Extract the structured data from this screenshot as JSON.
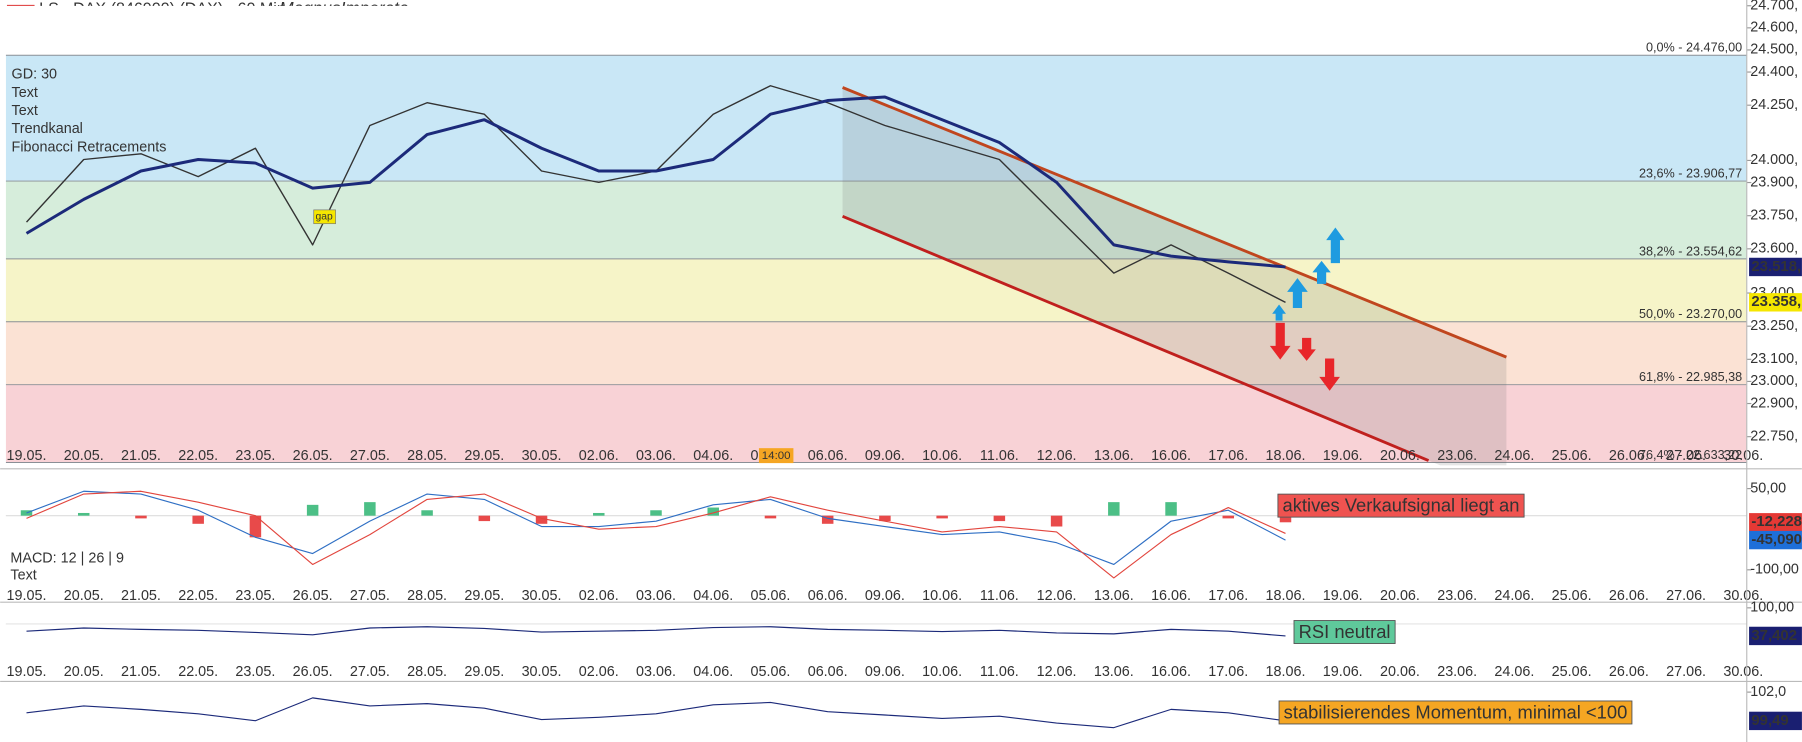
{
  "header": {
    "title": "LS - DAX (846900) (DAX) - 60 Min",
    "author": "MagnusImperata"
  },
  "chart_data": [
    {
      "type": "line",
      "categories": [
        "19.05.",
        "20.05.",
        "21.05.",
        "22.05.",
        "23.05.",
        "26.05.",
        "27.05.",
        "28.05.",
        "29.05.",
        "30.05.",
        "02.06.",
        "03.06.",
        "04.06.",
        "05.06.",
        "06.06.",
        "09.06.",
        "10.06.",
        "11.06.",
        "12.06.",
        "13.06.",
        "16.06.",
        "17.06.",
        "18.06.",
        "19.06.",
        "20.06.",
        "23.06.",
        "24.06.",
        "25.06.",
        "26.06.",
        "27.06.",
        "30.06."
      ],
      "series": [
        {
          "color": "#333333",
          "values": [
            23721,
            24004,
            24030,
            23927,
            24055,
            23618,
            24158,
            24261,
            24209,
            23952,
            23901,
            23952,
            24209,
            24338,
            24261,
            24158,
            24081,
            24004,
            23747,
            23490,
            23618,
            23490,
            23358,
            null,
            null,
            null,
            null,
            null,
            null,
            null,
            null
          ]
        },
        {
          "name": "GD: 30",
          "color": "#1c2a7a",
          "values": [
            23670,
            23824,
            23952,
            24004,
            23988,
            23875,
            23901,
            24117,
            24184,
            24055,
            23952,
            23952,
            24004,
            24209,
            24271,
            24287,
            24184,
            24081,
            23901,
            23618,
            23567,
            23541,
            23518,
            null,
            null,
            null,
            null,
            null,
            null,
            null,
            null
          ]
        }
      ],
      "legend": [
        {
          "label": "Text",
          "color": "#1c2a7a"
        },
        {
          "label": "Text",
          "color": "#1c2a7a"
        },
        {
          "label": "Trendkanal",
          "color": "#a0202a"
        },
        {
          "label": "Fibonacci Retracements",
          "color": "#8a8f96"
        }
      ],
      "ylim": [
        22620,
        24700
      ],
      "yticks": [
        {
          "value": 24700,
          "label": "24.700,"
        },
        {
          "value": 24600,
          "label": "24.600,"
        },
        {
          "value": 24500,
          "label": "24.500,"
        },
        {
          "value": 24400,
          "label": "24.400,"
        },
        {
          "value": 24250,
          "label": "24.250,"
        },
        {
          "value": 24000,
          "label": "24.000,"
        },
        {
          "value": 23900,
          "label": "23.900,"
        },
        {
          "value": 23750,
          "label": "23.750,"
        },
        {
          "value": 23600,
          "label": "23.600,"
        },
        {
          "value": 23400,
          "label": "23.400,"
        },
        {
          "value": 23250,
          "label": "23.250,"
        },
        {
          "value": 23100,
          "label": "23.100,"
        },
        {
          "value": 23000,
          "label": "23.000,"
        },
        {
          "value": 22900,
          "label": "22.900,"
        },
        {
          "value": 22750,
          "label": "22.750,"
        }
      ],
      "fibonacci": [
        {
          "value": 24476,
          "label": "0,0% - 24.476,00",
          "color": "#c9e7f6"
        },
        {
          "value": 23906.77,
          "label": "23,6% - 23.906,77",
          "color": "#d6eddb"
        },
        {
          "value": 23554.62,
          "label": "38,2% - 23.554,62",
          "color": "#f6f4c8"
        },
        {
          "value": 23270,
          "label": "50,0% - 23.270,00",
          "color": "#fbe2d4"
        },
        {
          "value": 22985.38,
          "label": "61,8% - 22.985,38",
          "color": "#f8d2d6"
        },
        {
          "value": 22633.22,
          "label": "76,4% - 22.633,22",
          "color": "#f8d2d6"
        }
      ],
      "channel": [
        {
          "color": "#c0461e",
          "points": [
            {
              "x": 14.26,
              "y": 24330
            },
            {
              "x": 25.86,
              "y": 23110
            }
          ]
        },
        {
          "color": "#c0201e",
          "points": [
            {
              "x": 14.26,
              "y": 23747
            },
            {
              "x": 24.5,
              "y": 22642
            }
          ]
        }
      ],
      "price_labels": [
        {
          "value": 23518,
          "label": "23.518,",
          "color": "#1a1f71",
          "text_color": "#ffffff"
        },
        {
          "value": 23358,
          "label": "23.358,",
          "color": "#f5e600",
          "text_color": "#222222"
        }
      ],
      "gap": {
        "label": "gap",
        "x": 5.2,
        "y": 23745
      },
      "time_marker": {
        "label": "14:00",
        "x": 13.1
      }
    },
    {
      "type": "macd",
      "label": "MACD: 12 | 26 | 9",
      "sublabel": "Text",
      "series": [
        {
          "color": "#2f6fc4",
          "values": [
            5,
            45,
            40,
            10,
            -40,
            -70,
            -10,
            40,
            30,
            -20,
            -20,
            -10,
            20,
            30,
            -5,
            -20,
            -35,
            -30,
            -50,
            -90,
            -10,
            10,
            -45.09,
            null,
            null,
            null,
            null,
            null,
            null,
            null,
            null
          ]
        },
        {
          "color": "#e2463e",
          "values": [
            -5,
            40,
            45,
            25,
            0,
            -90,
            -35,
            30,
            40,
            -5,
            -25,
            -20,
            5,
            35,
            10,
            -10,
            -30,
            -20,
            -30,
            -115,
            -35,
            15,
            -32.862,
            null,
            null,
            null,
            null,
            null,
            null,
            null,
            null
          ]
        }
      ],
      "histogram": {
        "up_color": "#4cbf86",
        "down_color": "#e84a4a",
        "values": [
          10,
          5,
          -5,
          -15,
          -40,
          20,
          25,
          10,
          -10,
          -15,
          5,
          10,
          15,
          -5,
          -15,
          -10,
          -5,
          -10,
          -20,
          25,
          25,
          -5,
          -12.228,
          null,
          null,
          null,
          null,
          null,
          null,
          null,
          null
        ]
      },
      "ylim": [
        -130,
        78
      ],
      "yticks": [
        {
          "value": 50,
          "label": "50,00"
        },
        {
          "value": -100,
          "label": "-100,00"
        }
      ],
      "last_labels": [
        {
          "value": -12.228,
          "label": "-12,228",
          "color": "#e53935"
        },
        {
          "value": -45.09,
          "label": "-45,090",
          "color": "#1e6fd9"
        }
      ],
      "annotation": {
        "label": "aktives Verkaufsignal liegt an",
        "color": "#ef5350"
      }
    },
    {
      "type": "line",
      "series": [
        {
          "color": "#1c2a7a",
          "values": [
            48,
            55,
            52,
            50,
            45,
            40,
            55,
            58,
            54,
            46,
            48,
            50,
            56,
            58,
            52,
            50,
            47,
            50,
            44,
            42,
            52,
            48,
            37.402,
            null,
            null,
            null,
            null,
            null,
            null,
            null,
            null
          ]
        }
      ],
      "ylim": [
        0,
        105
      ],
      "yticks": [
        {
          "value": 100,
          "label": "100,00"
        }
      ],
      "last_labels": [
        {
          "value": 37.402,
          "label": "37,402",
          "color": "#1a1f71"
        }
      ],
      "annotation": {
        "label": "RSI neutral",
        "color": "#5fc99b"
      }
    },
    {
      "type": "line",
      "series": [
        {
          "color": "#1c2a7a",
          "values": [
            100.2,
            100.8,
            100.5,
            100.1,
            99.5,
            101.5,
            100.8,
            101.0,
            100.6,
            99.6,
            99.8,
            100.1,
            100.9,
            101.1,
            100.3,
            100.0,
            99.7,
            99.9,
            99.3,
            98.9,
            100.5,
            100.2,
            99.49,
            null,
            null,
            null,
            null,
            null,
            null,
            null,
            null
          ]
        }
      ],
      "ylim": [
        97.72,
        102.63
      ],
      "yticks": [
        {
          "value": 102,
          "label": "102,0"
        }
      ],
      "last_labels": [
        {
          "value": 99.49,
          "label": "99,49",
          "color": "#1a1f71"
        }
      ],
      "annotation": {
        "label": "stabilisierendes Momentum, minimal <100",
        "color": "#f5a623"
      }
    }
  ]
}
